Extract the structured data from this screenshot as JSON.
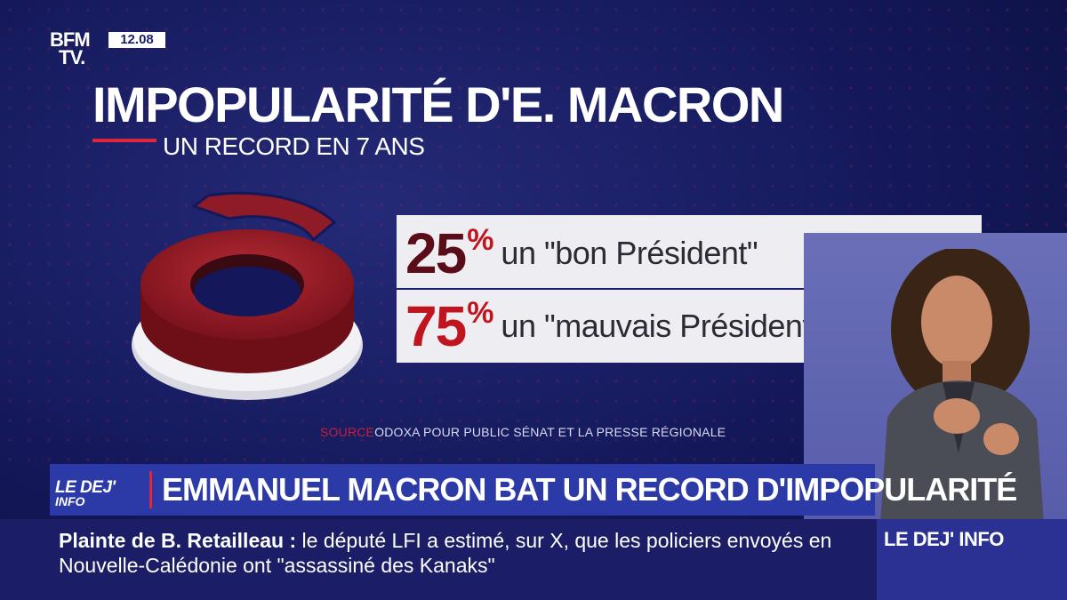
{
  "channel": {
    "logo_line1": "BFM",
    "logo_line2": "TV.",
    "clock": "12.08"
  },
  "graphic": {
    "title": "IMPOPULARITÉ D'E. MACRON",
    "subtitle": "UN RECORD EN 7 ANS",
    "stats": [
      {
        "value": "25",
        "unit": "%",
        "label": "un \"bon Président\"",
        "color": "#5a0c18"
      },
      {
        "value": "75",
        "unit": "%",
        "label": "un \"mauvais Président\"",
        "color": "#c0141f"
      }
    ],
    "source_key": "SOURCE",
    "source_text": "ODOXA POUR PUBLIC SÉNAT ET LA PRESSE RÉGIONALE"
  },
  "lower_third": {
    "show_logo": "LE DEJ'",
    "show_logo_sub": "INFO",
    "headline": "EMMANUEL MACRON BAT UN RECORD D'IMPOPULARITÉ"
  },
  "ticker": {
    "key": "Plainte de B. Retailleau :",
    "text": " le député LFI a estimé, sur X, que les policiers envoyés en Nouvelle-Calédonie ont \"assassiné des Kanaks\"",
    "label": "LE DEJ' INFO"
  },
  "colors": {
    "accent_red": "#e0263c",
    "dark_red": "#5a0c18",
    "navy": "#1b1e66",
    "banner_blue": "#2c3aa8"
  }
}
